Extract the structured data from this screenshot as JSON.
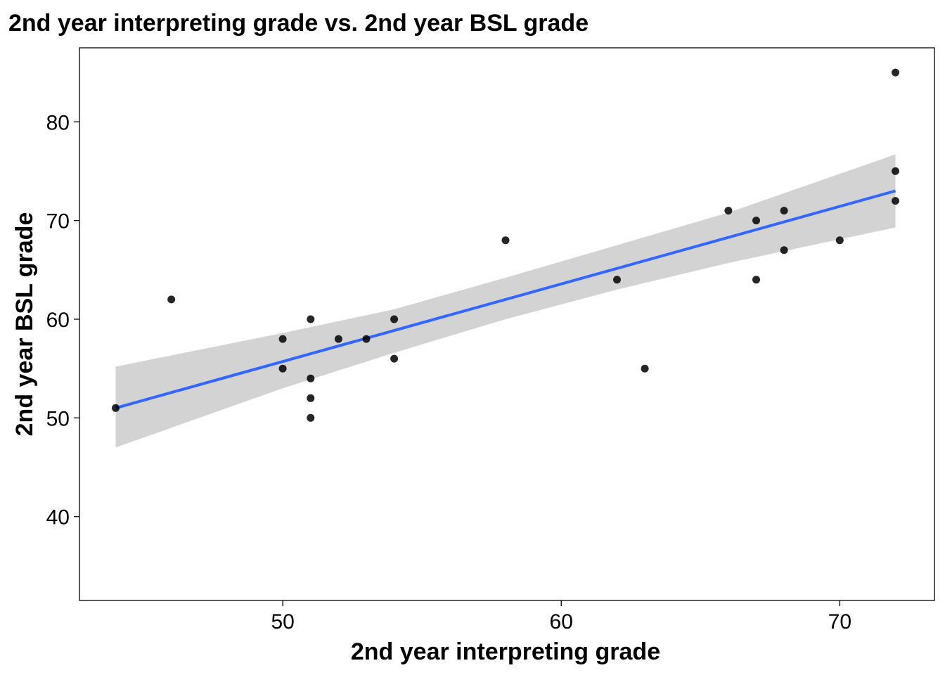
{
  "chart_data": {
    "type": "scatter",
    "title": "2nd year interpreting grade vs. 2nd year BSL grade",
    "xlabel": "2nd year interpreting grade",
    "ylabel": "2nd year BSL grade",
    "xlim": [
      42.7,
      73.4
    ],
    "ylim": [
      31.5,
      87.5
    ],
    "xticks": [
      50,
      60,
      70
    ],
    "yticks": [
      40,
      50,
      60,
      70,
      80
    ],
    "grid": false,
    "points": [
      {
        "x": 44,
        "y": 51
      },
      {
        "x": 46,
        "y": 62
      },
      {
        "x": 50,
        "y": 58
      },
      {
        "x": 50,
        "y": 55
      },
      {
        "x": 51,
        "y": 60
      },
      {
        "x": 51,
        "y": 54
      },
      {
        "x": 51,
        "y": 52
      },
      {
        "x": 51,
        "y": 50
      },
      {
        "x": 52,
        "y": 58
      },
      {
        "x": 53,
        "y": 58
      },
      {
        "x": 54,
        "y": 60
      },
      {
        "x": 54,
        "y": 56
      },
      {
        "x": 58,
        "y": 68
      },
      {
        "x": 62,
        "y": 64
      },
      {
        "x": 63,
        "y": 55
      },
      {
        "x": 66,
        "y": 71
      },
      {
        "x": 67,
        "y": 70
      },
      {
        "x": 67,
        "y": 64
      },
      {
        "x": 68,
        "y": 71
      },
      {
        "x": 68,
        "y": 67
      },
      {
        "x": 70,
        "y": 68
      },
      {
        "x": 72,
        "y": 85
      },
      {
        "x": 72,
        "y": 75
      },
      {
        "x": 72,
        "y": 72
      }
    ],
    "fit_line": {
      "method": "linear",
      "color": "#3366FF",
      "x": [
        44,
        72
      ],
      "y": [
        51,
        73
      ]
    },
    "confidence_band": {
      "color": "#D3D3D3",
      "x": [
        44,
        50,
        54,
        58,
        62,
        66,
        72
      ],
      "lower": [
        47.0,
        53.0,
        56.6,
        60.0,
        63.0,
        65.7,
        69.3
      ],
      "upper": [
        55.2,
        58.6,
        61.0,
        64.2,
        67.5,
        70.8,
        76.7
      ]
    },
    "point_color": "#000000"
  }
}
